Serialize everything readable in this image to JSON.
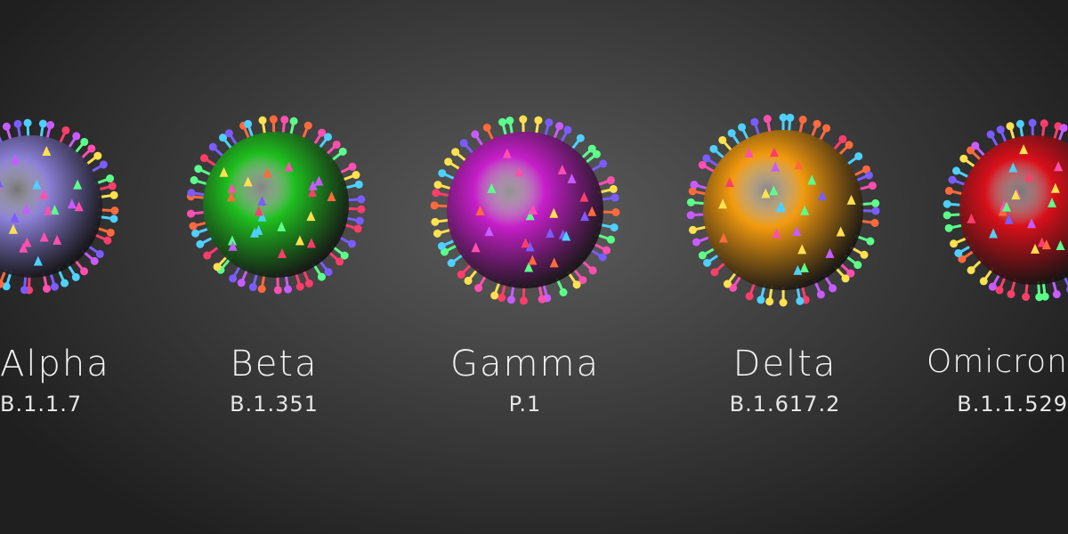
{
  "variants": [
    {
      "name": "Alpha",
      "lineage": "B.1.1.7",
      "color": "#8a7fd6"
    },
    {
      "name": "Beta",
      "lineage": "B.1.351",
      "color": "#1fbf1f"
    },
    {
      "name": "Gamma",
      "lineage": "P.1",
      "color": "#c61ec9"
    },
    {
      "name": "Delta",
      "lineage": "B.1.617.2",
      "color": "#f29a0e"
    },
    {
      "name": "Omicron",
      "lineage": "B.1.1.529",
      "color": "#d9101a"
    }
  ],
  "spike_colors": [
    "#ff4fb0",
    "#4fd0ff",
    "#ffe14f",
    "#7a5cff",
    "#ff6a3d",
    "#5cff8a",
    "#c85cff",
    "#ff3d6a"
  ]
}
